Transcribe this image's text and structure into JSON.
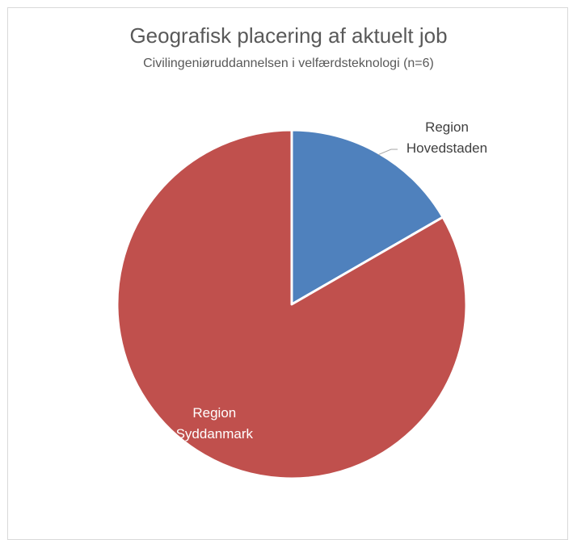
{
  "chart_data": {
    "type": "pie",
    "title": "Geografisk placering af aktuelt job",
    "subtitle": "Civilingeniøruddannelsen i velfærdsteknologi (n=6)",
    "slices": [
      {
        "label": [
          "Region",
          "Hovedstaden"
        ],
        "value": 1,
        "color": "#4f81bd",
        "label_color": "#404040",
        "label_placement": "outside"
      },
      {
        "label": [
          "Region",
          "Syddanmark"
        ],
        "value": 5,
        "color": "#c0504d",
        "label_color": "#ffffff",
        "label_placement": "inside"
      }
    ],
    "start_angle_deg": 0,
    "direction": "clockwise",
    "legend": "none"
  }
}
